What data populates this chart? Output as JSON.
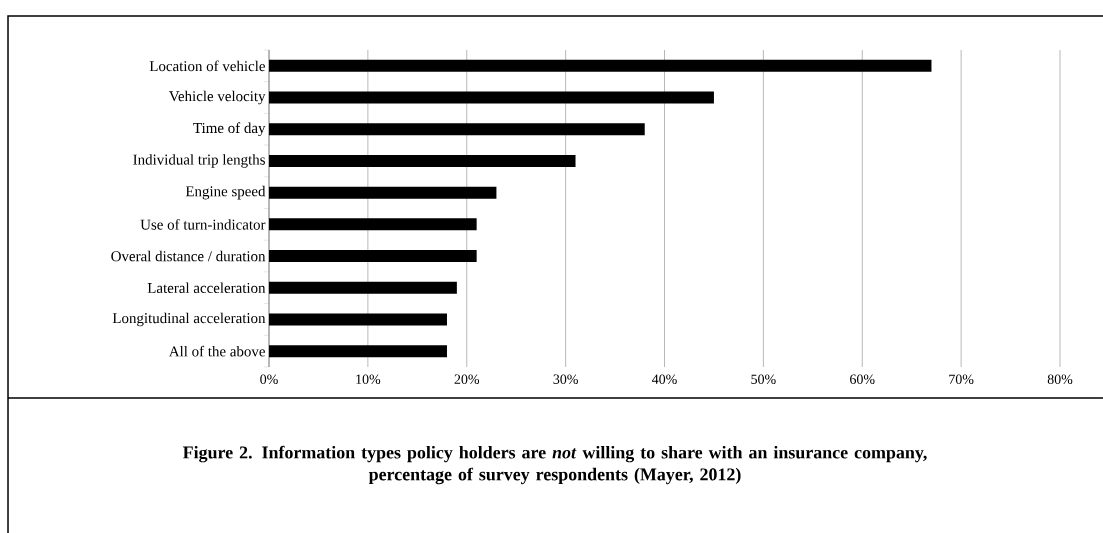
{
  "chart_data": {
    "type": "bar",
    "orientation": "horizontal",
    "title": "Figure 2.  Information types policy holders are *not* willing to share with an insurance company, percentage of survey respondents (Mayer, 2012)",
    "categories": [
      "Location of vehicle",
      "Vehicle velocity",
      "Time of day",
      "Individual trip lengths",
      "Engine speed",
      "Use of turn-indicator",
      "Overal distance / duration",
      "Lateral acceleration",
      "Longitudinal acceleration",
      "All of the above"
    ],
    "values": [
      67,
      45,
      38,
      31,
      23,
      21,
      21,
      19,
      18,
      18
    ],
    "color": "#000000",
    "xlim": [
      0,
      80
    ],
    "xticks": [
      {
        "value": 0,
        "label": "0%"
      },
      {
        "value": 10,
        "label": "10%"
      },
      {
        "value": 20,
        "label": "20%"
      },
      {
        "value": 30,
        "label": "30%"
      },
      {
        "value": 40,
        "label": "40%"
      },
      {
        "value": 50,
        "label": "50%"
      },
      {
        "value": 60,
        "label": "60%"
      },
      {
        "value": 70,
        "label": "70%"
      },
      {
        "value": 80,
        "label": "80%"
      }
    ],
    "grid": "x"
  }
}
